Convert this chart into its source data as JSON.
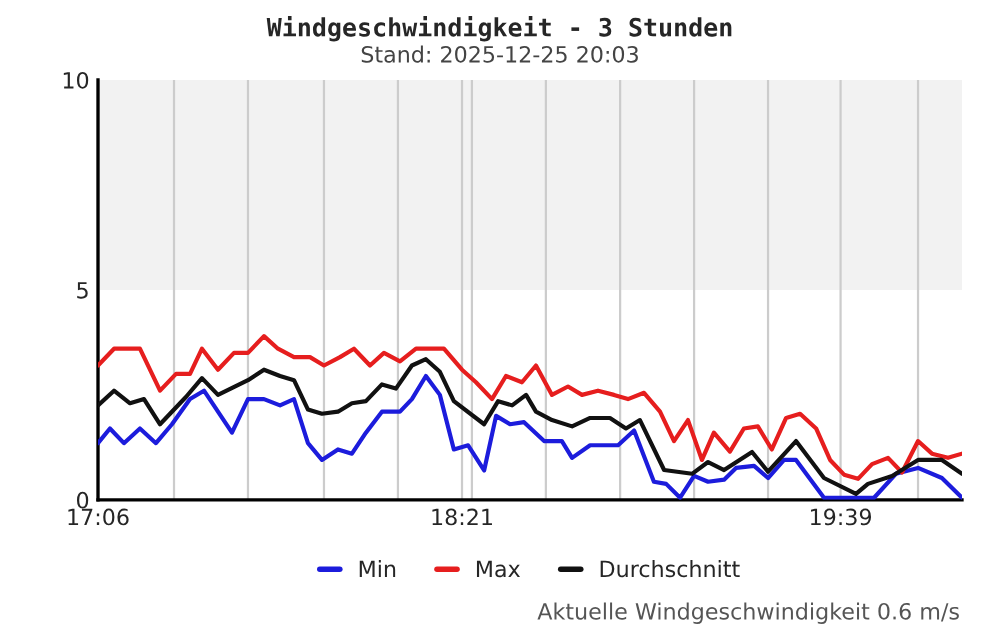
{
  "chart_data": {
    "type": "line",
    "title": "Windgeschwindigkeit - 3 Stunden",
    "subtitle": "Stand: 2025-12-25 20:03",
    "annotations": [
      "Aktuelle Windgeschwindigkeit 0.6 m/s"
    ],
    "series": [
      {
        "name": "Min",
        "color": "#1c1cdc",
        "x": [
          17.1,
          17.141,
          17.189,
          17.244,
          17.299,
          17.354,
          17.416,
          17.464,
          17.56,
          17.615,
          17.67,
          17.725,
          17.773,
          17.821,
          17.869,
          17.924,
          17.972,
          18.02,
          18.075,
          18.137,
          18.178,
          18.226,
          18.274,
          18.322,
          18.371,
          18.426,
          18.467,
          18.515,
          18.563,
          18.632,
          18.693,
          18.728,
          18.79,
          18.886,
          18.941,
          19.009,
          19.051,
          19.099,
          19.147,
          19.195,
          19.25,
          19.291,
          19.353,
          19.401,
          19.456,
          19.497,
          19.593,
          19.765,
          19.84,
          19.916,
          19.998,
          20.067
        ],
        "values": [
          1.35,
          1.7,
          1.35,
          1.7,
          1.35,
          1.8,
          2.4,
          2.6,
          1.6,
          2.4,
          2.4,
          2.25,
          2.4,
          1.35,
          0.95,
          1.2,
          1.1,
          1.6,
          2.1,
          2.1,
          2.4,
          2.95,
          2.5,
          1.2,
          1.3,
          0.7,
          2.0,
          1.8,
          1.85,
          1.4,
          1.4,
          1.0,
          1.3,
          1.3,
          1.65,
          0.43,
          0.38,
          0.05,
          0.57,
          0.43,
          0.48,
          0.76,
          0.81,
          0.52,
          0.95,
          0.95,
          0.05,
          0.05,
          0.62,
          0.76,
          0.52,
          0.05
        ]
      },
      {
        "name": "Max",
        "color": "#e61e1e",
        "x": [
          17.1,
          17.155,
          17.244,
          17.313,
          17.368,
          17.416,
          17.457,
          17.512,
          17.567,
          17.615,
          17.67,
          17.718,
          17.773,
          17.828,
          17.876,
          17.931,
          17.979,
          18.034,
          18.082,
          18.137,
          18.192,
          18.288,
          18.35,
          18.398,
          18.453,
          18.501,
          18.556,
          18.604,
          18.659,
          18.714,
          18.762,
          18.817,
          18.872,
          18.92,
          18.975,
          19.03,
          19.078,
          19.126,
          19.174,
          19.215,
          19.27,
          19.318,
          19.366,
          19.414,
          19.463,
          19.511,
          19.566,
          19.614,
          19.662,
          19.71,
          19.758,
          19.813,
          19.861,
          19.916,
          19.964,
          20.019,
          20.067
        ],
        "values": [
          3.2,
          3.6,
          3.6,
          2.6,
          3.0,
          3.0,
          3.6,
          3.1,
          3.5,
          3.5,
          3.9,
          3.6,
          3.4,
          3.4,
          3.2,
          3.4,
          3.6,
          3.2,
          3.5,
          3.3,
          3.6,
          3.6,
          3.1,
          2.8,
          2.4,
          2.95,
          2.8,
          3.2,
          2.5,
          2.7,
          2.5,
          2.6,
          2.5,
          2.4,
          2.55,
          2.1,
          1.4,
          1.9,
          0.95,
          1.6,
          1.15,
          1.7,
          1.75,
          1.2,
          1.95,
          2.05,
          1.7,
          0.95,
          0.6,
          0.5,
          0.85,
          1.0,
          0.65,
          1.4,
          1.1,
          1.0,
          1.1
        ]
      },
      {
        "name": "Durchschnitt",
        "color": "#111111",
        "x": [
          17.1,
          17.155,
          17.21,
          17.258,
          17.313,
          17.402,
          17.457,
          17.512,
          17.615,
          17.67,
          17.725,
          17.773,
          17.821,
          17.869,
          17.924,
          17.972,
          18.02,
          18.075,
          18.123,
          18.178,
          18.226,
          18.274,
          18.322,
          18.426,
          18.474,
          18.522,
          18.57,
          18.604,
          18.659,
          18.728,
          18.79,
          18.858,
          18.913,
          18.961,
          19.044,
          19.14,
          19.195,
          19.25,
          19.346,
          19.401,
          19.497,
          19.593,
          19.703,
          19.744,
          19.827,
          19.916,
          19.998,
          20.067
        ],
        "values": [
          2.25,
          2.6,
          2.3,
          2.4,
          1.8,
          2.45,
          2.9,
          2.5,
          2.85,
          3.1,
          2.95,
          2.85,
          2.15,
          2.05,
          2.1,
          2.3,
          2.35,
          2.75,
          2.65,
          3.2,
          3.35,
          3.05,
          2.35,
          1.8,
          2.35,
          2.25,
          2.5,
          2.1,
          1.9,
          1.75,
          1.95,
          1.95,
          1.7,
          1.9,
          0.71,
          0.62,
          0.9,
          0.71,
          1.14,
          0.67,
          1.4,
          0.52,
          0.14,
          0.38,
          0.57,
          0.95,
          0.95,
          0.62
        ]
      }
    ],
    "xlim": [
      17.1,
      20.067
    ],
    "xticks": [
      {
        "value": 17.1,
        "label": "17:06"
      },
      {
        "value": 17.361,
        "label": null
      },
      {
        "value": 17.615,
        "label": null
      },
      {
        "value": 17.876,
        "label": null
      },
      {
        "value": 18.13,
        "label": null
      },
      {
        "value": 18.35,
        "label": "18:21"
      },
      {
        "value": 18.384,
        "label": null
      },
      {
        "value": 18.638,
        "label": null
      },
      {
        "value": 18.893,
        "label": null
      },
      {
        "value": 19.147,
        "label": null
      },
      {
        "value": 19.401,
        "label": null
      },
      {
        "value": 19.65,
        "label": "19:39"
      },
      {
        "value": 19.916,
        "label": null
      }
    ],
    "ylim": [
      0,
      10
    ],
    "yticks": [
      0,
      5,
      10
    ],
    "bands": [
      {
        "axis": "y",
        "from": 5,
        "to": 10,
        "color": "#f2f2f2"
      }
    ],
    "grid": "x",
    "legend": "bottom",
    "line_style": "solid",
    "marker": "none"
  }
}
